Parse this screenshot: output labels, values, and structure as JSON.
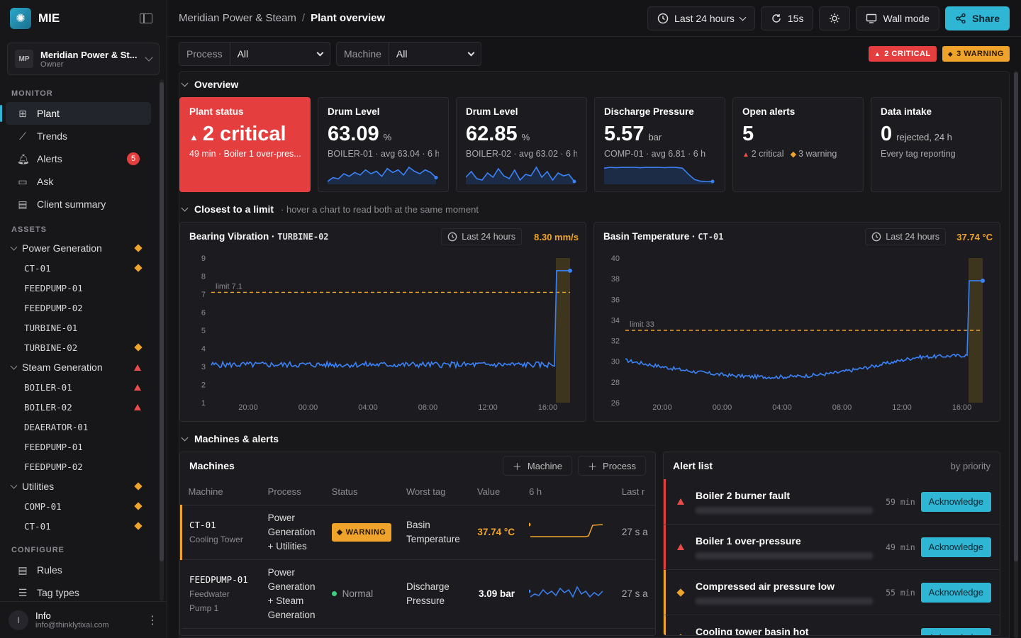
{
  "app": {
    "name": "MIE"
  },
  "workspace": {
    "initials": "MP",
    "name": "Meridian Power & St...",
    "role": "Owner"
  },
  "sidebar": {
    "monitor_label": "MONITOR",
    "monitor": [
      {
        "label": "Plant",
        "icon": "grid-icon",
        "active": true
      },
      {
        "label": "Trends",
        "icon": "trend-icon"
      },
      {
        "label": "Alerts",
        "icon": "bell-icon",
        "badge": "5"
      },
      {
        "label": "Ask",
        "icon": "chat-icon"
      },
      {
        "label": "Client summary",
        "icon": "document-icon"
      }
    ],
    "assets_label": "ASSETS",
    "assets": [
      {
        "label": "Power Generation",
        "group": true,
        "mark": "warn"
      },
      {
        "label": "CT-01",
        "mark": "warn"
      },
      {
        "label": "FEEDPUMP-01",
        "mark": ""
      },
      {
        "label": "FEEDPUMP-02",
        "mark": ""
      },
      {
        "label": "TURBINE-01",
        "mark": ""
      },
      {
        "label": "TURBINE-02",
        "mark": "warn"
      },
      {
        "label": "Steam Generation",
        "group": true,
        "mark": "crit"
      },
      {
        "label": "BOILER-01",
        "mark": "crit"
      },
      {
        "label": "BOILER-02",
        "mark": "crit"
      },
      {
        "label": "DEAERATOR-01",
        "mark": ""
      },
      {
        "label": "FEEDPUMP-01",
        "mark": ""
      },
      {
        "label": "FEEDPUMP-02",
        "mark": ""
      },
      {
        "label": "Utilities",
        "group": true,
        "mark": "warn"
      },
      {
        "label": "COMP-01",
        "mark": "warn"
      },
      {
        "label": "CT-01",
        "mark": "warn"
      }
    ],
    "configure_label": "CONFIGURE",
    "configure": [
      {
        "label": "Rules",
        "icon": "rules-icon"
      },
      {
        "label": "Tag types",
        "icon": "tags-icon"
      }
    ]
  },
  "user": {
    "initial": "I",
    "name": "Info",
    "email": "info@thinklytixai.com"
  },
  "topbar": {
    "crumb_org": "Meridian Power & Steam",
    "crumb_sep": "/",
    "crumb_page": "Plant overview",
    "range": "Last 24 hours",
    "refresh": "15s",
    "wall": "Wall mode",
    "share": "Share"
  },
  "filters": {
    "process_label": "Process",
    "process_value": "All",
    "machine_label": "Machine",
    "machine_value": "All",
    "critical": "2 CRITICAL",
    "warning": "3 WARNING"
  },
  "overview": {
    "title": "Overview",
    "kpis": [
      {
        "title": "Plant status",
        "value": "2 critical",
        "unit": "",
        "sub": "49 min · Boiler 1 over-pres...",
        "spark": []
      },
      {
        "title": "Drum Level",
        "value": "63.09",
        "unit": "%",
        "sub": "BOILER-01 · avg 63.04 · 6 h",
        "spark": [
          62.3,
          62.6,
          62.5,
          62.9,
          62.7,
          63.0,
          62.8,
          63.2,
          62.9,
          63.1,
          62.7,
          63.3,
          63.0,
          63.2,
          62.8,
          63.4,
          63.1,
          62.9,
          63.2,
          63.0,
          62.6
        ]
      },
      {
        "title": "Drum Level",
        "value": "62.85",
        "unit": "%",
        "sub": "BOILER-02 · avg 63.02 · 6 h",
        "spark": [
          62.8,
          63.2,
          62.7,
          62.6,
          63.1,
          62.8,
          63.4,
          62.9,
          62.7,
          63.3,
          62.6,
          63.0,
          62.9,
          63.5,
          62.8,
          63.2,
          62.6,
          63.1,
          62.9,
          63.0,
          62.5
        ]
      },
      {
        "title": "Discharge Pressure",
        "value": "5.57",
        "unit": "bar",
        "sub": "COMP-01 · avg 6.81 · 6 h",
        "spark": [
          7.1,
          7.2,
          7.15,
          7.2,
          7.18,
          7.2,
          7.15,
          7.2,
          7.18,
          7.2,
          7.16,
          7.2,
          7.18,
          7.1,
          6.4,
          5.8,
          5.6,
          5.57,
          5.57
        ]
      },
      {
        "title": "Open alerts",
        "value": "5",
        "unit": "",
        "sub_crit": "2 critical",
        "sub_warn": "3 warning",
        "spark": []
      },
      {
        "title": "Data intake",
        "value": "0",
        "unit": "rejected, 24 h",
        "sub": "Every tag reporting",
        "spark": []
      }
    ]
  },
  "closest": {
    "title": "Closest to a limit",
    "hint": "· hover a chart to read both at the same moment"
  },
  "chart_data": [
    {
      "type": "line",
      "title": "Bearing Vibration",
      "tag": "TURBINE-02",
      "range": "Last 24 hours",
      "current": "8.30 mm/s",
      "ylim": [
        1,
        9
      ],
      "yticks": [
        "9",
        "8",
        "7",
        "6",
        "5",
        "4",
        "3",
        "2",
        "1"
      ],
      "xticks": [
        "20:00",
        "00:00",
        "04:00",
        "08:00",
        "12:00",
        "16:00"
      ],
      "limit": 7.1,
      "limit_label": "limit 7.1",
      "baseline": 3.1,
      "spike_to": 8.3
    },
    {
      "type": "line",
      "title": "Basin Temperature",
      "tag": "CT-01",
      "range": "Last 24 hours",
      "current": "37.74 °C",
      "ylim": [
        26,
        40
      ],
      "yticks": [
        "40",
        "38",
        "36",
        "34",
        "32",
        "30",
        "28",
        "26"
      ],
      "xticks": [
        "20:00",
        "00:00",
        "04:00",
        "08:00",
        "12:00",
        "16:00"
      ],
      "limit": 33,
      "limit_label": "limit 33",
      "spike_to": 37.8
    }
  ],
  "machines_section": {
    "title": "Machines & alerts"
  },
  "machines": {
    "title": "Machines",
    "add_machine": "Machine",
    "add_process": "Process",
    "columns": [
      "Machine",
      "Process",
      "Status",
      "Worst tag",
      "Value",
      "6 h",
      "Last r"
    ],
    "rows": [
      {
        "id": "CT-01",
        "desc": "Cooling Tower",
        "process": "Power Generation + Utilities",
        "status": "WARNING",
        "tag": "Basin Temperature",
        "value": "37.74 °C",
        "last": "27 s a"
      },
      {
        "id": "FEEDPUMP-01",
        "desc": "Feedwater Pump 1",
        "process": "Power Generation + Steam Generation",
        "status": "Normal",
        "tag": "Discharge Pressure",
        "value": "3.09 bar",
        "last": "27 s a"
      }
    ]
  },
  "alerts": {
    "title": "Alert list",
    "sub": "by priority",
    "ack": "Acknowledge",
    "items": [
      {
        "title": "Boiler 2 burner fault",
        "sev": "crit",
        "time": "59 min"
      },
      {
        "title": "Boiler 1 over-pressure",
        "sev": "crit",
        "time": "49 min"
      },
      {
        "title": "Compressed air pressure low",
        "sev": "warn",
        "time": "55 min"
      },
      {
        "title": "Cooling tower basin hot",
        "sev": "warn",
        "time": ""
      }
    ]
  }
}
